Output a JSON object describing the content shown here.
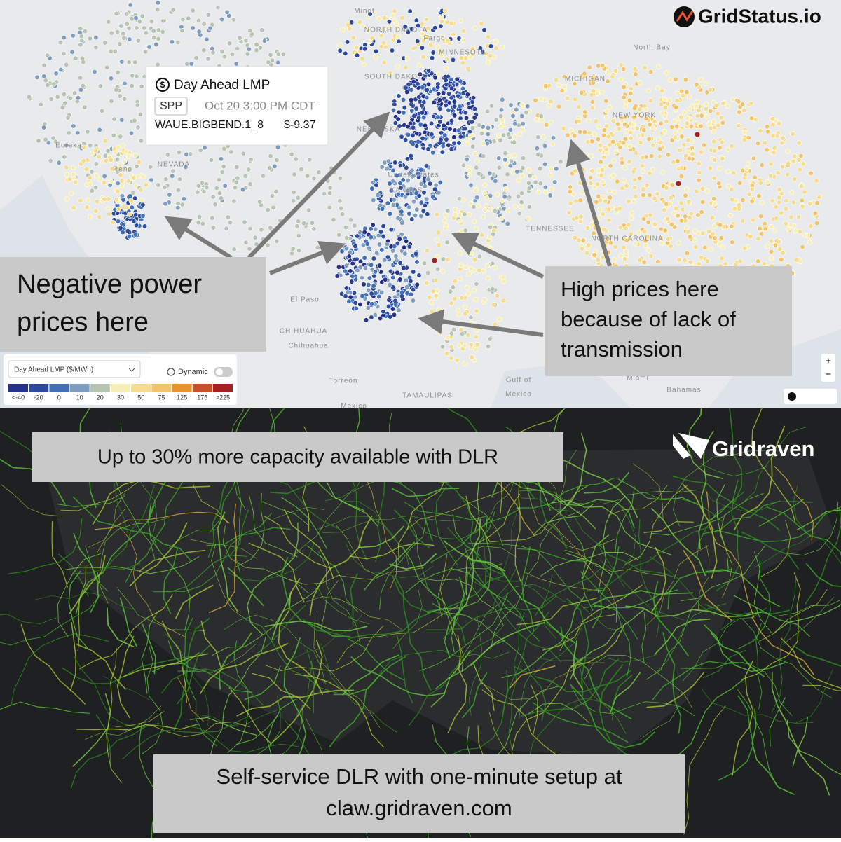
{
  "gridstatus": {
    "brand": "GridStatus.io",
    "tooltip": {
      "title": "Day Ahead LMP",
      "iso": "SPP",
      "time": "Oct 20 3:00 PM CDT",
      "node": "WAUE.BIGBEND.1_8",
      "price": "$-9.37"
    },
    "callout_left": {
      "line1": "Negative power",
      "line2": "prices here"
    },
    "callout_right": {
      "line1": "High prices here",
      "line2": "because of lack of",
      "line3": "transmission"
    },
    "legend": {
      "selector": "Day Ahead LMP ($/MWh)",
      "toggle": "Dynamic",
      "bins": [
        {
          "label": "<-40",
          "color": "#27318a"
        },
        {
          "label": "-20",
          "color": "#2d4a9c"
        },
        {
          "label": "0",
          "color": "#4170b8"
        },
        {
          "label": "10",
          "color": "#7f9dbf"
        },
        {
          "label": "20",
          "color": "#b7c4b4"
        },
        {
          "label": "30",
          "color": "#f6eeb6"
        },
        {
          "label": "50",
          "color": "#f5dc8e"
        },
        {
          "label": "75",
          "color": "#f2c46a"
        },
        {
          "label": "125",
          "color": "#e9932e"
        },
        {
          "label": "175",
          "color": "#c9512a"
        },
        {
          "label": ">225",
          "color": "#a61f22"
        }
      ]
    },
    "places": [
      {
        "label": "Minot"
      },
      {
        "label": "NORTH DAKOTA"
      },
      {
        "label": "Fargo"
      },
      {
        "label": "MINNESOTA"
      },
      {
        "label": "SOUTH DAKOTA"
      },
      {
        "label": "NEBRASKA"
      },
      {
        "label": "United States"
      },
      {
        "label": "KANSAS"
      },
      {
        "label": "NEVADA"
      },
      {
        "label": "TENNESSEE"
      },
      {
        "label": "NORTH CAROLINA"
      },
      {
        "label": "CHIHUAHUA"
      },
      {
        "label": "Chihuahua"
      },
      {
        "label": "Torreon"
      },
      {
        "label": "Gulf of"
      },
      {
        "label": "Mexico"
      },
      {
        "label": "Bahamas"
      },
      {
        "label": "Miami"
      },
      {
        "label": "TAMAULIPAS"
      },
      {
        "label": "El Paso"
      },
      {
        "label": "NEW YORK"
      },
      {
        "label": "MICHIGAN"
      },
      {
        "label": "North Bay"
      },
      {
        "label": "Reno"
      },
      {
        "label": "Eureka"
      },
      {
        "label": "Mexico"
      }
    ]
  },
  "gridraven": {
    "brand": "Gridraven",
    "headline": "Up to 30% more capacity available with DLR",
    "footer": {
      "line1": "Self-service DLR with one-minute setup at",
      "line2": "claw.gridraven.com"
    }
  }
}
